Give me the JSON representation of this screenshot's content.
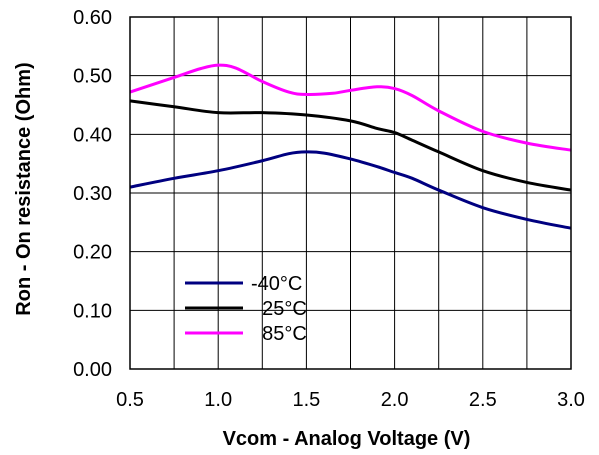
{
  "chart_data": {
    "type": "line",
    "xlabel": "Vcom - Analog Voltage (V)",
    "ylabel": "Ron - On resistance (Ohm)",
    "xlim": [
      0.5,
      3.0
    ],
    "ylim": [
      0.0,
      0.6
    ],
    "xticks": [
      "0.5",
      "1.0",
      "1.5",
      "2.0",
      "2.5",
      "3.0"
    ],
    "yticks": [
      "0.00",
      "0.10",
      "0.20",
      "0.30",
      "0.40",
      "0.50",
      "0.60"
    ],
    "grid": true,
    "legend_position": "bottom-left",
    "series": [
      {
        "name": "-40°C",
        "color": "#000080",
        "x": [
          0.5,
          0.75,
          1.0,
          1.25,
          1.4,
          1.5,
          1.6,
          1.75,
          1.9,
          2.0,
          2.1,
          2.25,
          2.5,
          2.75,
          3.0
        ],
        "y": [
          0.31,
          0.325,
          0.338,
          0.355,
          0.367,
          0.37,
          0.368,
          0.358,
          0.345,
          0.335,
          0.325,
          0.305,
          0.275,
          0.255,
          0.24
        ]
      },
      {
        "name": "25°C",
        "color": "#000000",
        "x": [
          0.5,
          0.75,
          1.0,
          1.25,
          1.5,
          1.75,
          1.9,
          2.0,
          2.1,
          2.25,
          2.5,
          2.75,
          3.0
        ],
        "y": [
          0.457,
          0.447,
          0.437,
          0.437,
          0.433,
          0.423,
          0.41,
          0.403,
          0.39,
          0.37,
          0.338,
          0.318,
          0.305
        ]
      },
      {
        "name": "85°C",
        "color": "#FF00FF",
        "x": [
          0.5,
          0.75,
          0.9,
          1.0,
          1.1,
          1.25,
          1.4,
          1.5,
          1.65,
          1.75,
          1.9,
          2.0,
          2.1,
          2.25,
          2.5,
          2.75,
          3.0
        ],
        "y": [
          0.472,
          0.497,
          0.512,
          0.518,
          0.513,
          0.49,
          0.472,
          0.468,
          0.47,
          0.475,
          0.481,
          0.478,
          0.466,
          0.44,
          0.405,
          0.385,
          0.373
        ]
      }
    ]
  }
}
